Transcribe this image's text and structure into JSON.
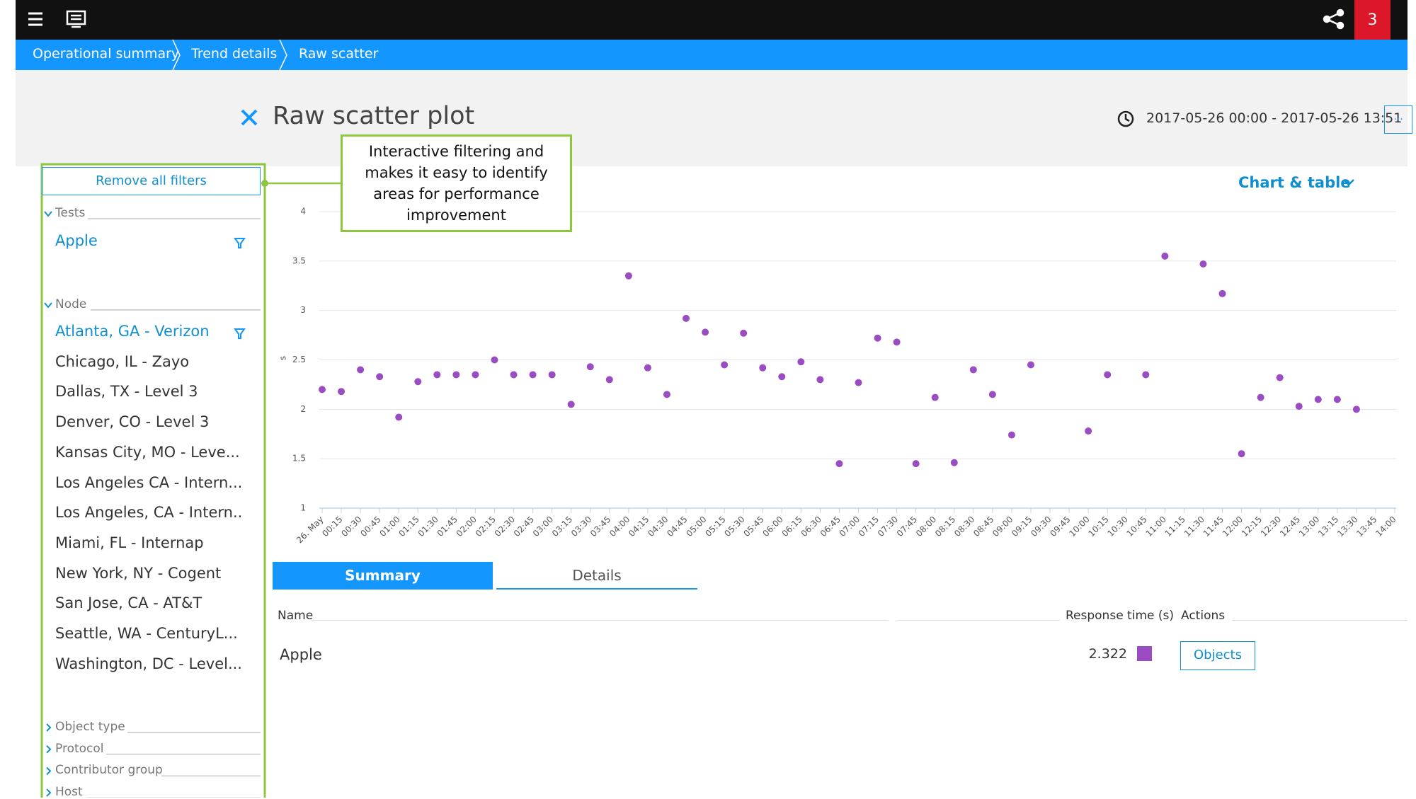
{
  "nav": {
    "badge": "3"
  },
  "breadcrumbs": [
    "Operational summary",
    "Trend details",
    "Raw scatter"
  ],
  "header": {
    "title": "Raw scatter plot",
    "time_range": "2017-05-26 00:00 - 2017-05-26 13:51",
    "more": "..."
  },
  "callout": "Interactive filtering and makes it easy to identify areas for performance improvement",
  "sidebar": {
    "remove_filters": "Remove all filters",
    "tests": {
      "label": "Tests",
      "items": [
        "Apple"
      ]
    },
    "node": {
      "label": "Node",
      "items": [
        "Atlanta, GA - Verizon",
        "Chicago, IL - Zayo",
        "Dallas, TX - Level 3",
        "Denver, CO - Level 3",
        "Kansas City, MO - Leve...",
        "Los Angeles CA - Intern...",
        "Los Angeles, CA - Intern..",
        "Miami, FL - Internap",
        "New York, NY - Cogent",
        "San Jose, CA - AT&T",
        "Seattle, WA - CenturyL...",
        "Washington, DC - Level..."
      ]
    },
    "collapsed": [
      "Object type",
      "Protocol",
      "Contributor group",
      "Host"
    ]
  },
  "view_selector": "Chart & table",
  "chart_data": {
    "type": "scatter",
    "ylabel": "s",
    "categories": [
      "26. May",
      "00:15",
      "00:30",
      "00:45",
      "01:00",
      "01:15",
      "01:30",
      "01:45",
      "02:00",
      "02:15",
      "02:30",
      "02:45",
      "03:00",
      "03:15",
      "03:30",
      "03:45",
      "04:00",
      "04:15",
      "04:30",
      "04:45",
      "05:00",
      "05:15",
      "05:30",
      "05:45",
      "06:00",
      "06:15",
      "06:30",
      "06:45",
      "07:00",
      "07:15",
      "07:30",
      "07:45",
      "08:00",
      "08:15",
      "08:30",
      "08:45",
      "09:00",
      "09:15",
      "09:30",
      "09:45",
      "10:00",
      "10:15",
      "10:30",
      "10:45",
      "11:00",
      "11:15",
      "11:30",
      "11:45",
      "12:00",
      "12:15",
      "12:30",
      "12:45",
      "13:00",
      "13:15",
      "13:30",
      "13:45",
      "14:00"
    ],
    "series": [
      {
        "name": "Apple",
        "color": "#9a4cc2",
        "values": [
          2.2,
          2.18,
          2.4,
          2.33,
          1.92,
          2.28,
          2.35,
          2.35,
          2.35,
          2.5,
          2.35,
          2.35,
          2.35,
          2.05,
          2.43,
          2.3,
          3.35,
          2.42,
          2.15,
          2.92,
          2.78,
          2.45,
          2.77,
          2.42,
          2.33,
          2.48,
          2.3,
          1.45,
          2.27,
          2.72,
          2.68,
          1.45,
          2.12,
          1.46,
          2.4,
          2.15,
          1.74,
          2.45,
          null,
          null,
          1.78,
          2.35,
          null,
          2.35,
          3.55,
          null,
          3.47,
          3.17,
          1.55,
          2.12,
          2.32,
          2.03,
          2.1,
          2.1,
          2.0,
          null,
          null
        ]
      }
    ],
    "ylim": [
      1,
      4
    ],
    "yticks": [
      1,
      1.5,
      2,
      2.5,
      3,
      3.5,
      4
    ],
    "grid": true
  },
  "tabs": [
    "Summary",
    "Details"
  ],
  "table": {
    "columns": [
      "Name",
      "Response time (s)",
      "Actions"
    ],
    "rows": [
      [
        "Apple",
        "2.322",
        "Objects"
      ]
    ]
  }
}
